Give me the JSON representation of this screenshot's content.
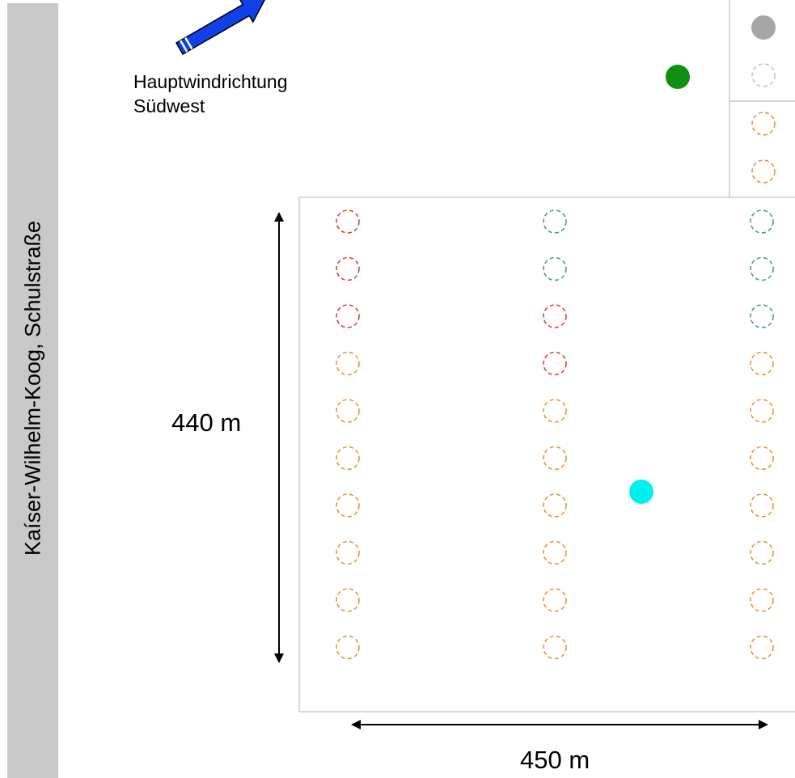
{
  "road": {
    "label": "Kaíser-Wilhelm-Koog, Schulstraße"
  },
  "wind": {
    "line1": "Hauptwindrichtung",
    "line2": "Südwest",
    "arrow_icon": "wind-direction-arrow-icon"
  },
  "dimensions": {
    "height_label": "440 m",
    "width_label": "450 m"
  },
  "colors": {
    "red": "#e8342a",
    "teal": "#3f9a80",
    "orange": "#f08a2a",
    "light_gray": "#bfbfbf",
    "filled_gray": "#a6a6a6",
    "filled_green": "#109010",
    "filled_cyan": "#00f0f0",
    "arrow_blue": "#1040e8",
    "road_strip": "#c9c9c9"
  },
  "grid": {
    "columns": [
      [
        "red",
        "red",
        "red",
        "orange",
        "orange",
        "orange",
        "orange",
        "orange",
        "orange",
        "orange"
      ],
      [
        "teal",
        "teal",
        "red",
        "red",
        "orange",
        "orange",
        "orange",
        "orange",
        "orange",
        "orange"
      ],
      [
        "teal",
        "teal",
        "teal",
        "orange",
        "orange",
        "orange",
        "orange",
        "orange",
        "orange",
        "orange"
      ]
    ]
  },
  "legend_column": [
    "filled_gray",
    "light_gray",
    "orange",
    "orange"
  ],
  "markers": [
    {
      "name": "green-marker",
      "color": "filled_green"
    },
    {
      "name": "cyan-marker",
      "color": "filled_cyan"
    }
  ]
}
